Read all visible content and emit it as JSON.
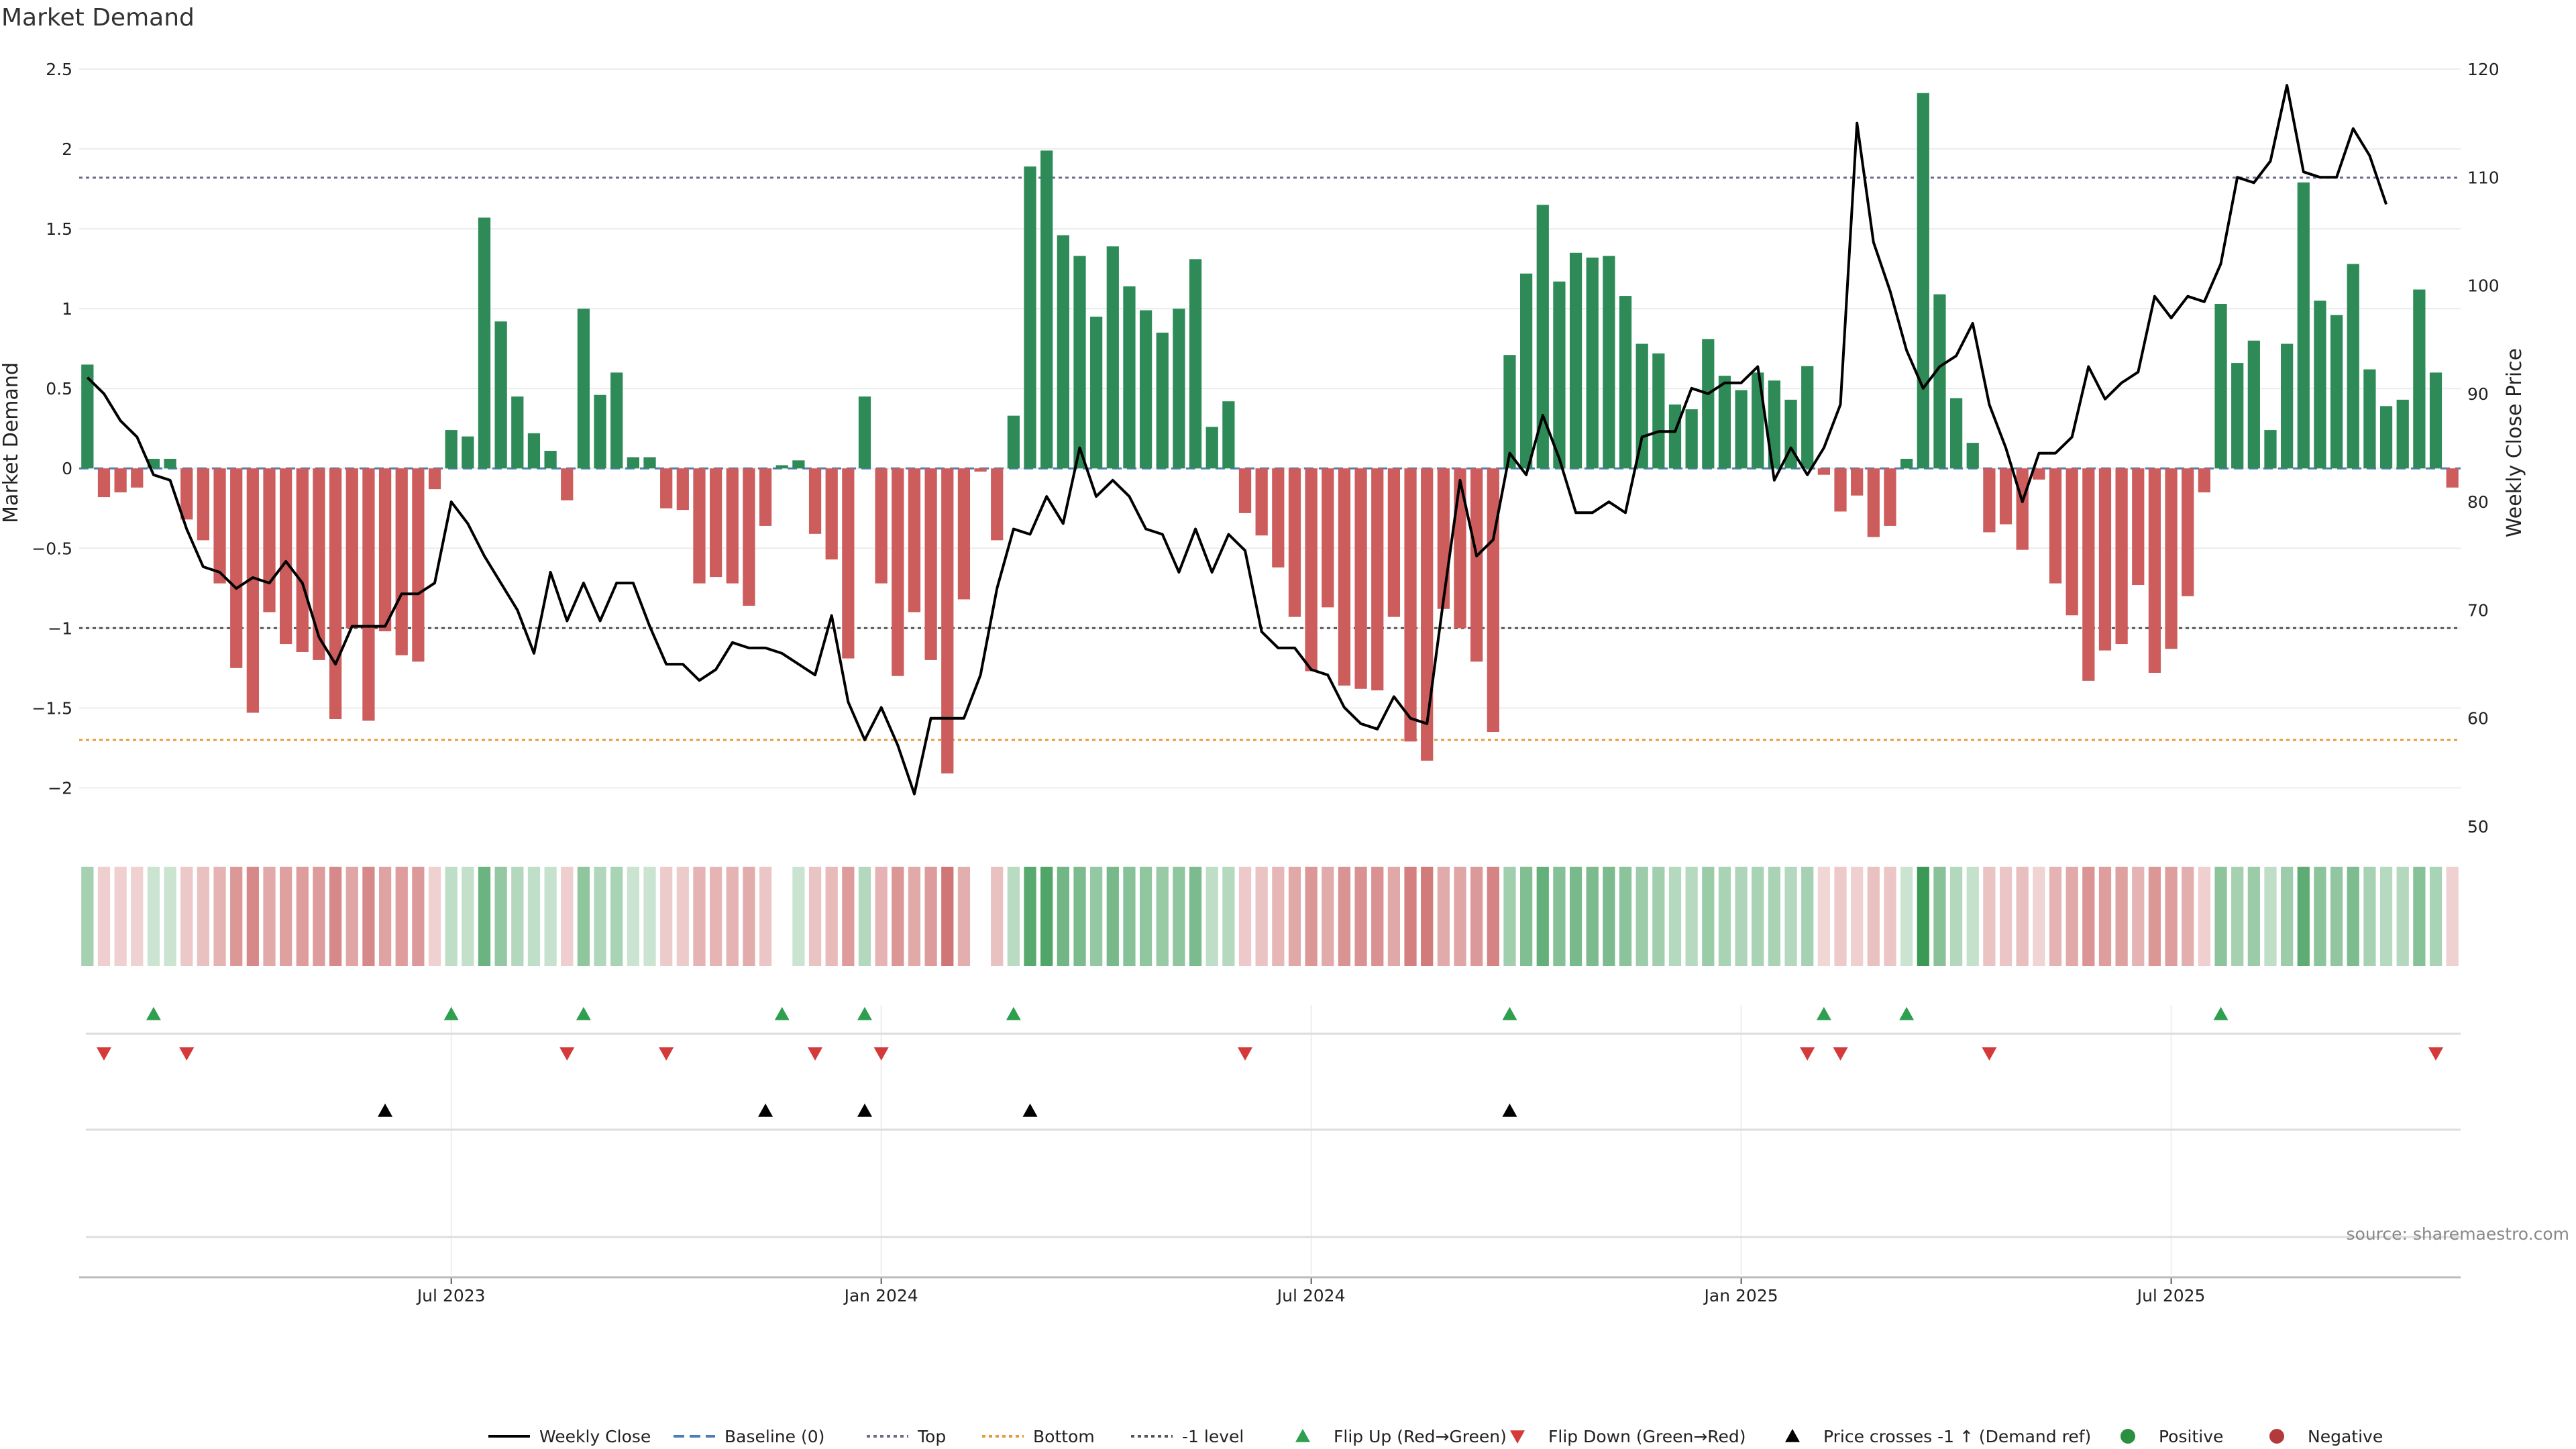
{
  "chart_data": {
    "type": "bar",
    "title": "Market Demand",
    "ylabel_left": "Market Demand",
    "ylabel_right": "Weekly Close Price",
    "source": "source: sharemaestro.com",
    "y_left": {
      "min": -2.2,
      "max": 2.5,
      "ticks": [
        2.5,
        2,
        1.5,
        1,
        0.5,
        0,
        -0.5,
        -1,
        -1.5,
        -2
      ],
      "tick_labels": [
        "2.5",
        "2",
        "1.5",
        "1",
        "0.5",
        "0",
        "−0.5",
        "−1",
        "−1.5",
        "−2"
      ]
    },
    "y_right": {
      "min": 50,
      "max": 120,
      "ticks": [
        120,
        110,
        100,
        90,
        80,
        70,
        60,
        50
      ],
      "tick_labels": [
        "120",
        "110",
        "100",
        "90",
        "80",
        "70",
        "60",
        "50"
      ]
    },
    "x_tick_labels": [
      "Jul 2023",
      "Jan 2024",
      "Jul 2024",
      "Jan 2025",
      "Jul 2025"
    ],
    "x_tick_weeks": [
      22,
      48,
      74,
      100,
      126
    ],
    "reference_lines": {
      "top": 1.82,
      "bottom": -1.7,
      "minus_one": -1.0,
      "baseline": 0
    },
    "demand": [
      0.65,
      -0.18,
      -0.15,
      -0.12,
      0.06,
      0.06,
      -0.32,
      -0.45,
      -0.72,
      -1.25,
      -1.53,
      -0.9,
      -1.1,
      -1.15,
      -1.2,
      -1.57,
      -1.0,
      -1.58,
      -1.02,
      -1.17,
      -1.21,
      -0.13,
      0.24,
      0.2,
      1.57,
      0.92,
      0.45,
      0.22,
      0.11,
      -0.2,
      1.0,
      0.46,
      0.6,
      0.07,
      0.07,
      -0.25,
      -0.26,
      -0.72,
      -0.68,
      -0.72,
      -0.86,
      -0.36,
      0.02,
      0.05,
      -0.41,
      -0.57,
      -1.19,
      0.45,
      -0.72,
      -1.3,
      -0.9,
      -1.2,
      -1.91,
      -0.82,
      -0.02,
      -0.45,
      0.33,
      1.89,
      1.99,
      1.46,
      1.33,
      0.95,
      1.39,
      1.14,
      0.99,
      0.85,
      1.0,
      1.31,
      0.26,
      0.42,
      -0.28,
      -0.42,
      -0.62,
      -0.93,
      -1.27,
      -0.87,
      -1.36,
      -1.38,
      -1.39,
      -0.93,
      -1.71,
      -1.83,
      -0.88,
      -1.0,
      -1.21,
      -1.65,
      0.71,
      1.22,
      1.65,
      1.17,
      1.35,
      1.32,
      1.33,
      1.08,
      0.78,
      0.72,
      0.4,
      0.37,
      0.81,
      0.58,
      0.49,
      0.6,
      0.55,
      0.43,
      0.64,
      -0.04,
      -0.27,
      -0.17,
      -0.43,
      -0.36,
      0.06,
      2.35,
      1.09,
      0.44,
      0.16,
      -0.4,
      -0.35,
      -0.51,
      -0.07,
      -0.72,
      -0.92,
      -1.33,
      -1.14,
      -1.1,
      -0.73,
      -1.28,
      -1.13,
      -0.8,
      -0.15,
      1.03,
      0.66,
      0.8,
      0.24,
      0.78,
      1.79,
      1.05,
      0.96,
      1.28,
      0.62,
      0.39,
      0.43,
      1.12,
      0.6,
      -0.12
    ],
    "price": [
      91.5,
      90,
      87.5,
      86,
      82.5,
      82,
      77.5,
      74,
      73.5,
      72,
      73,
      72.5,
      74.5,
      72.5,
      67.5,
      65,
      68.5,
      68.5,
      68.5,
      71.5,
      71.5,
      72.5,
      80,
      78,
      75,
      72.5,
      70,
      66,
      73.5,
      69,
      72.5,
      69,
      72.5,
      72.5,
      68.5,
      65,
      65,
      63.5,
      64.5,
      67,
      66.5,
      66.5,
      66,
      65,
      64,
      69.5,
      61.5,
      58,
      61,
      57.5,
      53,
      60,
      60,
      60,
      64,
      72,
      77.5,
      77,
      80.5,
      78,
      85,
      80.5,
      82,
      80.5,
      77.5,
      77,
      73.5,
      77.5,
      73.5,
      77,
      75.5,
      68,
      66.5,
      66.5,
      64.5,
      64,
      61,
      59.5,
      59,
      62,
      60,
      59.5,
      71,
      82,
      75,
      76.5,
      84.5,
      82.5,
      88,
      84,
      79,
      79,
      80,
      79,
      86,
      86.5,
      86.5,
      90.5,
      90,
      91,
      91,
      92.5,
      82,
      85,
      82.5,
      85,
      89,
      115,
      104,
      99.5,
      94,
      90.5,
      92.5,
      93.5,
      96.5,
      89,
      85,
      80,
      84.5,
      84.5,
      86,
      92.5,
      89.5,
      91,
      92,
      99,
      97,
      99,
      98.5,
      102,
      110,
      109.5,
      111.5,
      118.5,
      110.5,
      110,
      110,
      114.5,
      112,
      107.5
    ],
    "flip_up_weeks": [
      4,
      22,
      30,
      42,
      47,
      56,
      86,
      105,
      110,
      129
    ],
    "flip_down_weeks": [
      1,
      6,
      29,
      35,
      44,
      48,
      70,
      104,
      106,
      115,
      142
    ],
    "price_cross_weeks": [
      18,
      41,
      47,
      57,
      86
    ],
    "legend": [
      {
        "key": "weekly-close",
        "label": "Weekly Close",
        "kind": "line",
        "color": "#000000"
      },
      {
        "key": "baseline",
        "label": "Baseline (0)",
        "kind": "dashed",
        "color": "#4a7fb5"
      },
      {
        "key": "top",
        "label": "Top",
        "kind": "dotted",
        "color": "#6b6b8e"
      },
      {
        "key": "bottom",
        "label": "Bottom",
        "kind": "dotted",
        "color": "#e39b3c"
      },
      {
        "key": "minus-one",
        "label": "-1 level",
        "kind": "dotted",
        "color": "#555555"
      },
      {
        "key": "flip-up",
        "label": "Flip Up (Red→Green)",
        "kind": "tri-up",
        "color": "#2e9e4f"
      },
      {
        "key": "flip-down",
        "label": "Flip Down (Green→Red)",
        "kind": "tri-down",
        "color": "#d43a3a"
      },
      {
        "key": "price-cross",
        "label": "Price crosses -1 ↑ (Demand ref)",
        "kind": "tri-up",
        "color": "#000000"
      },
      {
        "key": "positive",
        "label": "Positive",
        "kind": "dot",
        "color": "#2a8f3e"
      },
      {
        "key": "negative",
        "label": "Negative",
        "kind": "dot",
        "color": "#b23a3a"
      }
    ],
    "colors": {
      "positive_bar": "#2e8b57",
      "negative_bar": "#cd5c5c",
      "price_line": "#000000",
      "strip_pos_base": "#3a9a55",
      "strip_neg_base": "#c96060"
    }
  }
}
